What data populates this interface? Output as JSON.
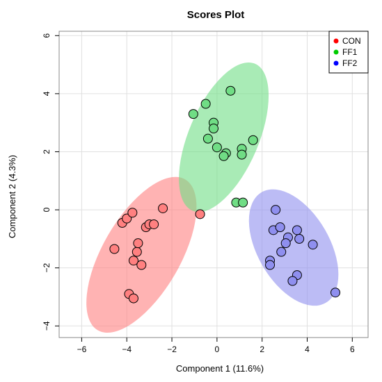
{
  "chart_data": {
    "type": "scatter",
    "title": "Scores Plot",
    "xlabel": "Component 1 (11.6%)",
    "ylabel": "Component 2 (4.3%)",
    "xlim": [
      -7,
      6.7
    ],
    "ylim": [
      -4.4,
      6.15
    ],
    "xticks": [
      -6,
      -4,
      -2,
      0,
      2,
      4,
      6
    ],
    "yticks": [
      -4,
      -2,
      0,
      2,
      4,
      6
    ],
    "grid": true,
    "legend_position": "top-right",
    "series": [
      {
        "name": "CON",
        "color": "#ff0000",
        "ellipse_color": "#ff8080",
        "points": [
          {
            "x": -4.55,
            "y": -1.35
          },
          {
            "x": -4.2,
            "y": -0.45
          },
          {
            "x": -4.0,
            "y": -0.3
          },
          {
            "x": -3.75,
            "y": -0.1
          },
          {
            "x": -3.7,
            "y": -1.75
          },
          {
            "x": -3.55,
            "y": -1.45
          },
          {
            "x": -3.5,
            "y": -1.15
          },
          {
            "x": -3.35,
            "y": -1.9
          },
          {
            "x": -3.15,
            "y": -0.6
          },
          {
            "x": -3.0,
            "y": -0.5
          },
          {
            "x": -2.8,
            "y": -0.5
          },
          {
            "x": -2.4,
            "y": 0.05
          },
          {
            "x": -0.75,
            "y": -0.15
          },
          {
            "x": -3.9,
            "y": -2.9
          },
          {
            "x": -3.7,
            "y": -3.05
          }
        ],
        "ellipse": {
          "cx": -3.35,
          "cy": -1.55,
          "rx": 1.72,
          "ry": 3.0,
          "angle_deg": 30
        }
      },
      {
        "name": "FF1",
        "color": "#00cc00",
        "ellipse_color": "#70dd85",
        "points": [
          {
            "x": -1.05,
            "y": 3.3
          },
          {
            "x": -0.5,
            "y": 3.65
          },
          {
            "x": 0.6,
            "y": 4.1
          },
          {
            "x": -0.15,
            "y": 3.0
          },
          {
            "x": -0.15,
            "y": 2.8
          },
          {
            "x": -0.4,
            "y": 2.45
          },
          {
            "x": 0.0,
            "y": 2.15
          },
          {
            "x": 0.4,
            "y": 1.95
          },
          {
            "x": 0.3,
            "y": 1.85
          },
          {
            "x": 1.1,
            "y": 2.1
          },
          {
            "x": 1.1,
            "y": 1.9
          },
          {
            "x": 1.6,
            "y": 2.4
          },
          {
            "x": 0.85,
            "y": 0.25
          },
          {
            "x": 1.15,
            "y": 0.25
          }
        ],
        "ellipse": {
          "cx": 0.3,
          "cy": 2.5,
          "rx": 1.55,
          "ry": 2.75,
          "angle_deg": 23
        }
      },
      {
        "name": "FF2",
        "color": "#0000ff",
        "ellipse_color": "#8f8fef",
        "points": [
          {
            "x": 2.6,
            "y": 0.0
          },
          {
            "x": 2.5,
            "y": -0.7
          },
          {
            "x": 2.8,
            "y": -0.6
          },
          {
            "x": 3.55,
            "y": -0.7
          },
          {
            "x": 3.65,
            "y": -1.0
          },
          {
            "x": 3.15,
            "y": -0.95
          },
          {
            "x": 3.05,
            "y": -1.15
          },
          {
            "x": 2.85,
            "y": -1.45
          },
          {
            "x": 4.25,
            "y": -1.2
          },
          {
            "x": 2.35,
            "y": -1.75
          },
          {
            "x": 2.35,
            "y": -1.9
          },
          {
            "x": 3.55,
            "y": -2.25
          },
          {
            "x": 3.35,
            "y": -2.45
          },
          {
            "x": 5.25,
            "y": -2.85
          }
        ],
        "ellipse": {
          "cx": 3.4,
          "cy": -1.3,
          "rx": 1.6,
          "ry": 2.2,
          "angle_deg": -30
        }
      }
    ]
  }
}
